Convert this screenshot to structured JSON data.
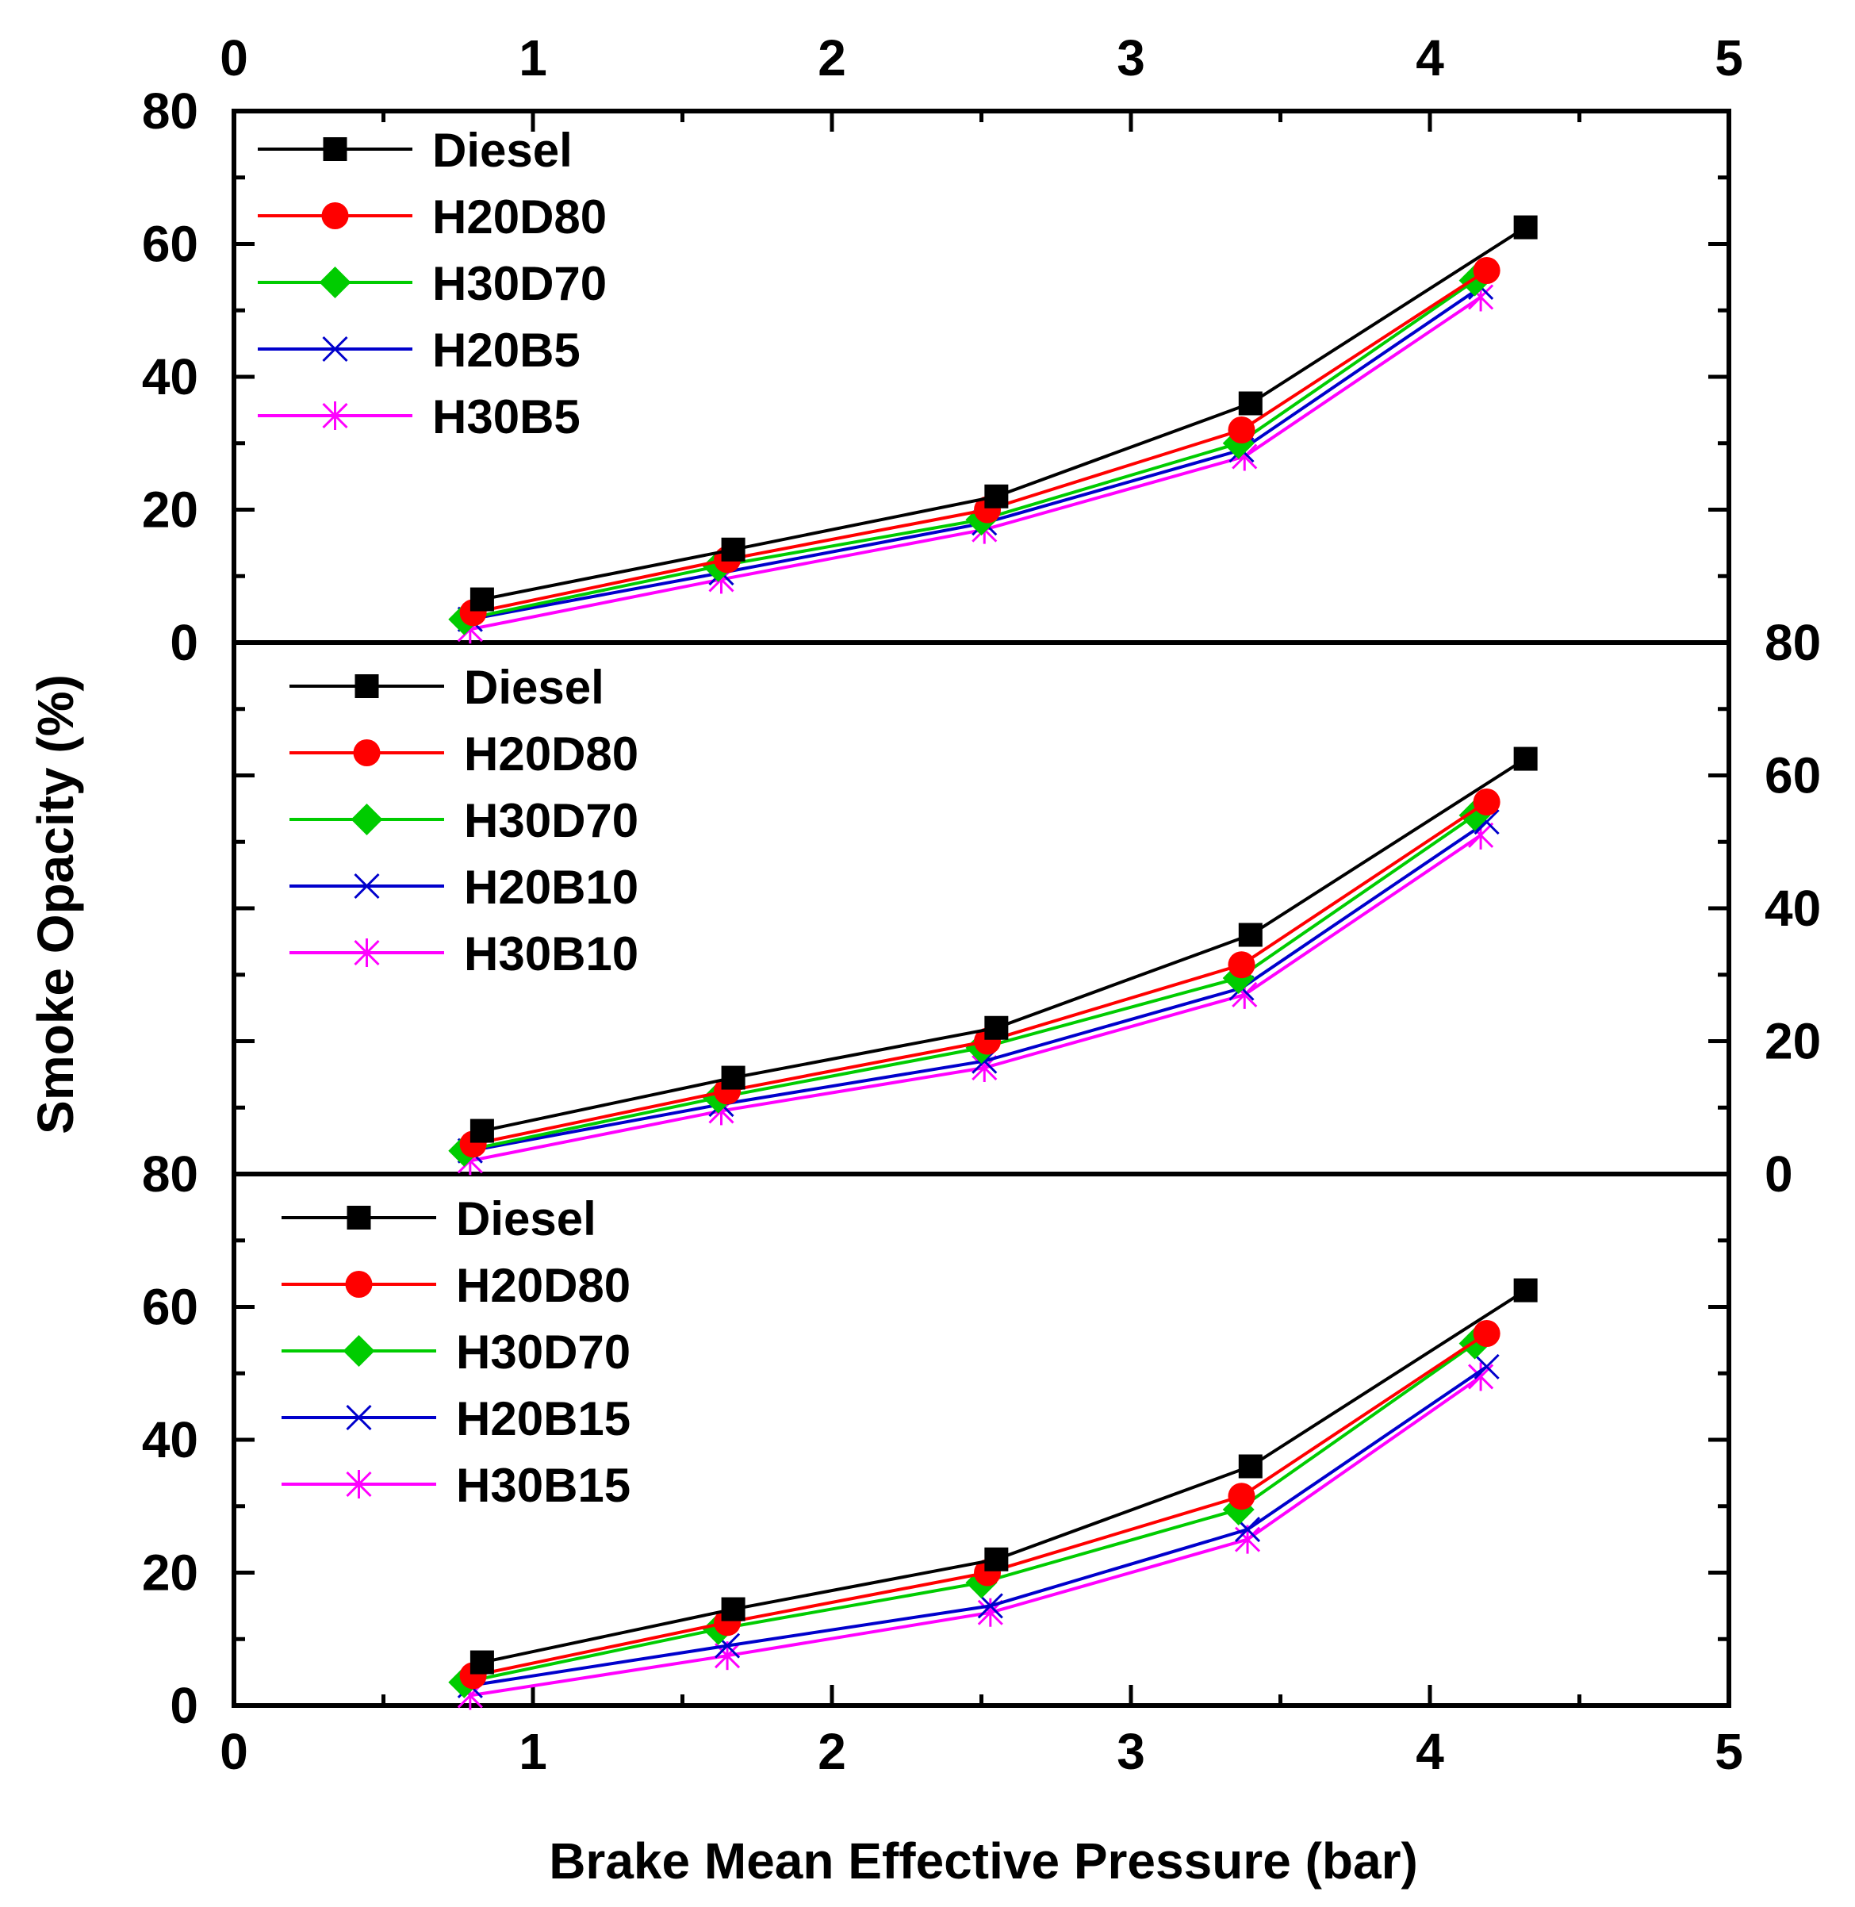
{
  "chart_data": {
    "type": "line",
    "xlabel": "Brake Mean Effective Pressure (bar)",
    "ylabel": "Smoke Opacity (%)",
    "xlim": [
      0,
      5
    ],
    "x_ticks": [
      "0",
      "1",
      "2",
      "3",
      "4",
      "5"
    ],
    "panels": [
      {
        "ylim": [
          0,
          80
        ],
        "y_ticks": [
          "0",
          "20",
          "40",
          "60",
          "80"
        ],
        "y_tick_side": "left",
        "legend_position": "top-left",
        "series": [
          {
            "name": "Diesel",
            "color": "#000000",
            "marker": "square",
            "x": [
              0.83,
              1.67,
              2.55,
              3.4,
              4.32
            ],
            "y": [
              6.5,
              14,
              22,
              36,
              62.5
            ]
          },
          {
            "name": "H20D80",
            "color": "#ff0000",
            "marker": "circle",
            "x": [
              0.8,
              1.65,
              2.52,
              3.37,
              4.19
            ],
            "y": [
              4.5,
              12.5,
              20,
              32,
              56
            ]
          },
          {
            "name": "H30D70",
            "color": "#00cc00",
            "marker": "diamond",
            "x": [
              0.77,
              1.62,
              2.5,
              3.36,
              4.15
            ],
            "y": [
              3.5,
              11.5,
              18.5,
              30,
              54.5
            ]
          },
          {
            "name": "H20B5",
            "color": "#0000cc",
            "marker": "x",
            "x": [
              0.79,
              1.63,
              2.51,
              3.37,
              4.17
            ],
            "y": [
              3.5,
              10.5,
              18,
              29,
              53.5
            ]
          },
          {
            "name": "H30B5",
            "color": "#ff00ff",
            "marker": "asterisk",
            "x": [
              0.79,
              1.63,
              2.51,
              3.38,
              4.17
            ],
            "y": [
              2,
              9.5,
              17,
              28,
              52
            ]
          }
        ]
      },
      {
        "ylim": [
          0,
          80
        ],
        "y_ticks": [
          "0",
          "20",
          "40",
          "60",
          "80"
        ],
        "y_tick_side": "right",
        "legend_position": "top-left",
        "series": [
          {
            "name": "Diesel",
            "color": "#000000",
            "marker": "square",
            "x": [
              0.83,
              1.67,
              2.55,
              3.4,
              4.32
            ],
            "y": [
              6.5,
              14.5,
              22,
              36,
              62.5
            ]
          },
          {
            "name": "H20D80",
            "color": "#ff0000",
            "marker": "circle",
            "x": [
              0.8,
              1.65,
              2.52,
              3.37,
              4.19
            ],
            "y": [
              4.5,
              12.5,
              20,
              31.5,
              56
            ]
          },
          {
            "name": "H30D70",
            "color": "#00cc00",
            "marker": "diamond",
            "x": [
              0.77,
              1.62,
              2.5,
              3.36,
              4.15
            ],
            "y": [
              3.5,
              11.5,
              19,
              29.5,
              54
            ]
          },
          {
            "name": "H20B10",
            "color": "#0000cc",
            "marker": "x",
            "x": [
              0.79,
              1.63,
              2.51,
              3.37,
              4.19
            ],
            "y": [
              3.5,
              10.5,
              17,
              28,
              53
            ]
          },
          {
            "name": "H30B10",
            "color": "#ff00ff",
            "marker": "asterisk",
            "x": [
              0.79,
              1.63,
              2.51,
              3.38,
              4.17
            ],
            "y": [
              2,
              9.5,
              16,
              27,
              51
            ]
          }
        ]
      },
      {
        "ylim": [
          0,
          80
        ],
        "y_ticks": [
          "0",
          "20",
          "40",
          "60",
          "80"
        ],
        "y_tick_side": "left",
        "legend_position": "top-left",
        "series": [
          {
            "name": "Diesel",
            "color": "#000000",
            "marker": "square",
            "x": [
              0.83,
              1.67,
              2.55,
              3.4,
              4.32
            ],
            "y": [
              6.5,
              14.5,
              22,
              36,
              62.5
            ]
          },
          {
            "name": "H20D80",
            "color": "#ff0000",
            "marker": "circle",
            "x": [
              0.8,
              1.65,
              2.52,
              3.37,
              4.19
            ],
            "y": [
              4.5,
              12.5,
              20,
              31.5,
              56
            ]
          },
          {
            "name": "H30D70",
            "color": "#00cc00",
            "marker": "diamond",
            "x": [
              0.77,
              1.62,
              2.5,
              3.36,
              4.15
            ],
            "y": [
              3.5,
              11.5,
              18.5,
              29.5,
              54.5
            ]
          },
          {
            "name": "H20B15",
            "color": "#0000cc",
            "marker": "x",
            "x": [
              0.79,
              1.65,
              2.53,
              3.39,
              4.19
            ],
            "y": [
              3,
              9,
              15,
              26.5,
              51
            ]
          },
          {
            "name": "H30B15",
            "color": "#ff00ff",
            "marker": "asterisk",
            "x": [
              0.79,
              1.65,
              2.53,
              3.39,
              4.17
            ],
            "y": [
              1.5,
              7.5,
              14,
              25,
              49.5
            ]
          }
        ]
      }
    ]
  }
}
